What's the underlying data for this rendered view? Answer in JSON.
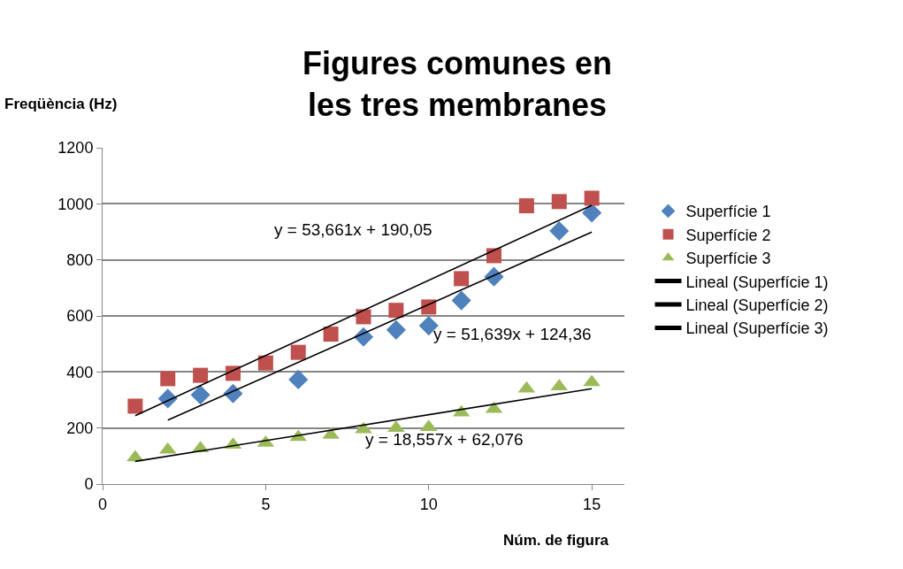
{
  "chart_data": {
    "type": "scatter",
    "title": "Figures comunes en\nles tres membranes",
    "xlabel": "Núm. de figura",
    "ylabel": "Freqüència (Hz)",
    "x": [
      1,
      2,
      3,
      4,
      5,
      6,
      7,
      8,
      9,
      10,
      11,
      12,
      13,
      14,
      15
    ],
    "series": [
      {
        "name": "Superfície 1",
        "color": "#4f81bd",
        "marker": "diamond",
        "values": [
          null,
          305,
          318,
          323,
          null,
          373,
          null,
          525,
          550,
          565,
          655,
          740,
          null,
          903,
          968
        ]
      },
      {
        "name": "Superfície 2",
        "color": "#c0504d",
        "marker": "square",
        "values": [
          278,
          376,
          388,
          395,
          432,
          470,
          535,
          597,
          620,
          632,
          733,
          815,
          993,
          1008,
          1020
        ]
      },
      {
        "name": "Superfície 3",
        "color": "#9bbb59",
        "marker": "triangle",
        "values": [
          95,
          122,
          127,
          140,
          147,
          167,
          175,
          195,
          200,
          203,
          255,
          268,
          340,
          348,
          363
        ]
      },
      {
        "name": "Lineal (Superfície 1)",
        "type": "line",
        "color": "#000000",
        "marker": "none",
        "x": [
          2,
          15
        ],
        "values": [
          228,
          899
        ]
      },
      {
        "name": "Lineal (Superfície 2)",
        "type": "line",
        "color": "#000000",
        "marker": "none",
        "x": [
          1,
          15
        ],
        "values": [
          244,
          995
        ]
      },
      {
        "name": "Lineal (Superfície 3)",
        "type": "line",
        "color": "#000000",
        "marker": "none",
        "x": [
          1,
          15
        ],
        "values": [
          81,
          340
        ]
      }
    ],
    "annotations": [
      "y = 53,661x + 190,05",
      "y = 51,639x + 124,36",
      "y = 18,557x + 62,076"
    ],
    "xlim": [
      0,
      16
    ],
    "xticks": [
      0,
      5,
      10,
      15
    ],
    "ylim": [
      0,
      1200
    ],
    "yticks": [
      0,
      200,
      400,
      600,
      800,
      1000,
      1200
    ],
    "grid": "y",
    "legend": "right"
  }
}
